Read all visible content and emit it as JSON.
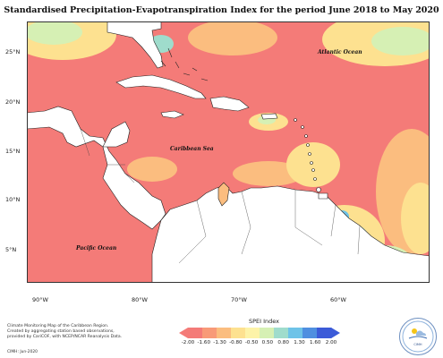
{
  "title": "Standardised Precipitation-Evapotranspiration Index for the period June 2018 to May 2020",
  "map_labels": {
    "atlantic": "Atlantic Ocean",
    "caribbean": "Caribbean Sea",
    "pacific": "Pacific Ocean"
  },
  "lat_labels": [
    "25°N",
    "20°N",
    "15°N",
    "10°N",
    "5°N"
  ],
  "lon_labels": [
    "90°W",
    "80°W",
    "70°W",
    "60°W"
  ],
  "credit": {
    "line1": "Climate Monitoring Map of the Caribbean Region.",
    "line2": "Created by aggregating station based observations,",
    "line3": "provided by CariCOF, with NCEP/NCAR Reanalysis Data.",
    "date": "CIMH: Jun-2020"
  },
  "legend": {
    "title": "SPEI Index",
    "ticks": [
      "-2.00",
      "-1.60",
      "-1.30",
      "-0.80",
      "-0.50",
      "0.50",
      "0.80",
      "1.30",
      "1.60",
      "2.00"
    ],
    "colors": [
      "#f47b78",
      "#f89a78",
      "#fbbd7f",
      "#fde190",
      "#fdf3a8",
      "#d6f0b4",
      "#9fdccc",
      "#6ec3e8",
      "#4f8fe0",
      "#3c5bd8"
    ]
  },
  "colors": {
    "dry": "#f47b78",
    "land": "#ffffff",
    "coast": "#222222"
  },
  "logo": {
    "text": "CIMH"
  }
}
